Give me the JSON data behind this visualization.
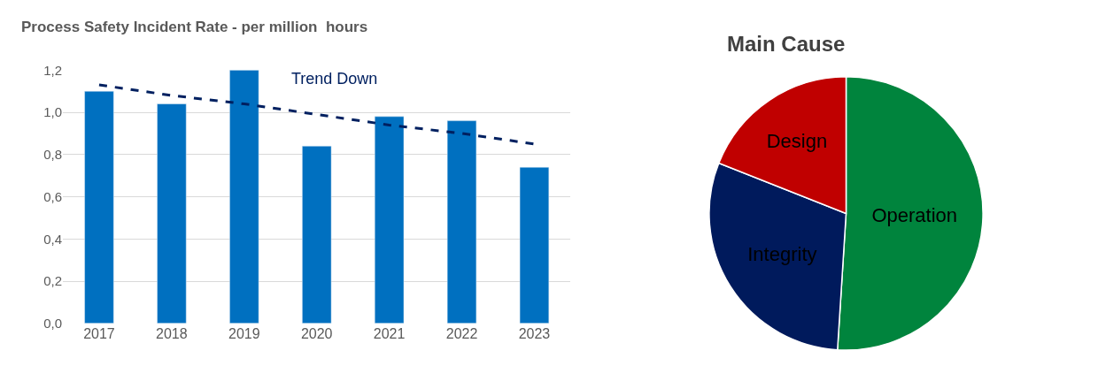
{
  "chart_data": [
    {
      "type": "bar",
      "title": "Process Safety Incident Rate - per million  hours",
      "categories": [
        "2017",
        "2018",
        "2019",
        "2020",
        "2021",
        "2022",
        "2023"
      ],
      "series": [
        {
          "type": "bar",
          "color": "#0070c0",
          "values": [
            1.1,
            1.04,
            1.2,
            0.84,
            0.98,
            0.96,
            0.74
          ]
        },
        {
          "type": "line",
          "name": "Trend Down",
          "color": "#002060",
          "line_style": "dashed",
          "values": [
            1.13,
            1.08,
            1.04,
            0.99,
            0.94,
            0.9,
            0.85
          ]
        }
      ],
      "ylim": [
        0,
        1.2
      ],
      "yticks": [
        {
          "value": 0,
          "label": "0,0"
        },
        {
          "value": 0.2,
          "label": "0,2"
        },
        {
          "value": 0.4,
          "label": "0,4"
        },
        {
          "value": 0.6,
          "label": "0,6"
        },
        {
          "value": 0.8,
          "label": "0,8"
        },
        {
          "value": 1.0,
          "label": "1,0"
        },
        {
          "value": 1.2,
          "label": "1,2"
        }
      ],
      "grid": "y",
      "legend": false
    },
    {
      "type": "pie",
      "title": "Main Cause",
      "categories": [
        "Operation",
        "Integrity",
        "Design"
      ],
      "values": [
        51,
        30,
        19
      ],
      "colors": [
        "#00843d",
        "#001a5c",
        "#c00000"
      ],
      "legend": false
    }
  ]
}
